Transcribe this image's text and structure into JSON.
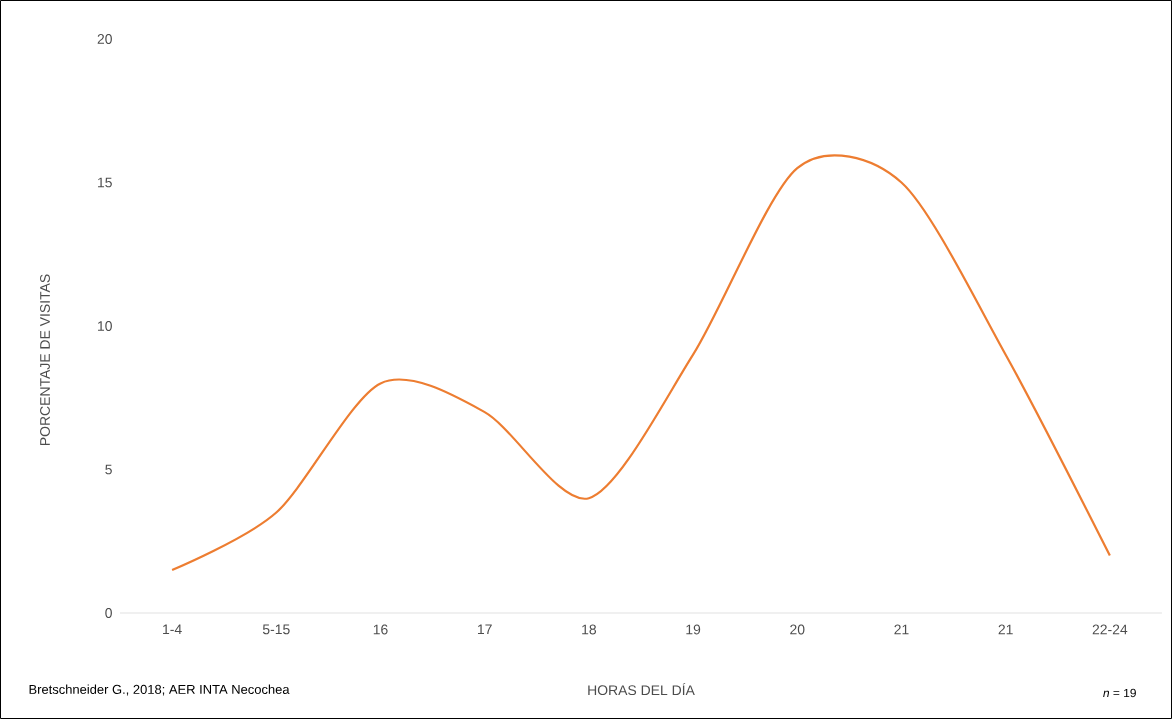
{
  "chart_data": {
    "type": "line",
    "xlabel": "HORAS DEL DÍA",
    "ylabel": "PORCENTAJE DE VISITAS",
    "categories": [
      "1-4",
      "5-15",
      "16",
      "17",
      "18",
      "19",
      "20",
      "21",
      "21",
      "22-24"
    ],
    "values": [
      1.5,
      3.5,
      8,
      7,
      4,
      9,
      15.5,
      15,
      9,
      2
    ],
    "color": "#ed7d31",
    "ylim": [
      0,
      20
    ],
    "yticks": [
      0,
      5,
      10,
      15,
      20
    ],
    "grid": false,
    "marker": "none",
    "line_style": "solid",
    "annotations": [
      "Bretschneider G., 2018;  AER INTA Necochea",
      "*n* = 19"
    ]
  }
}
